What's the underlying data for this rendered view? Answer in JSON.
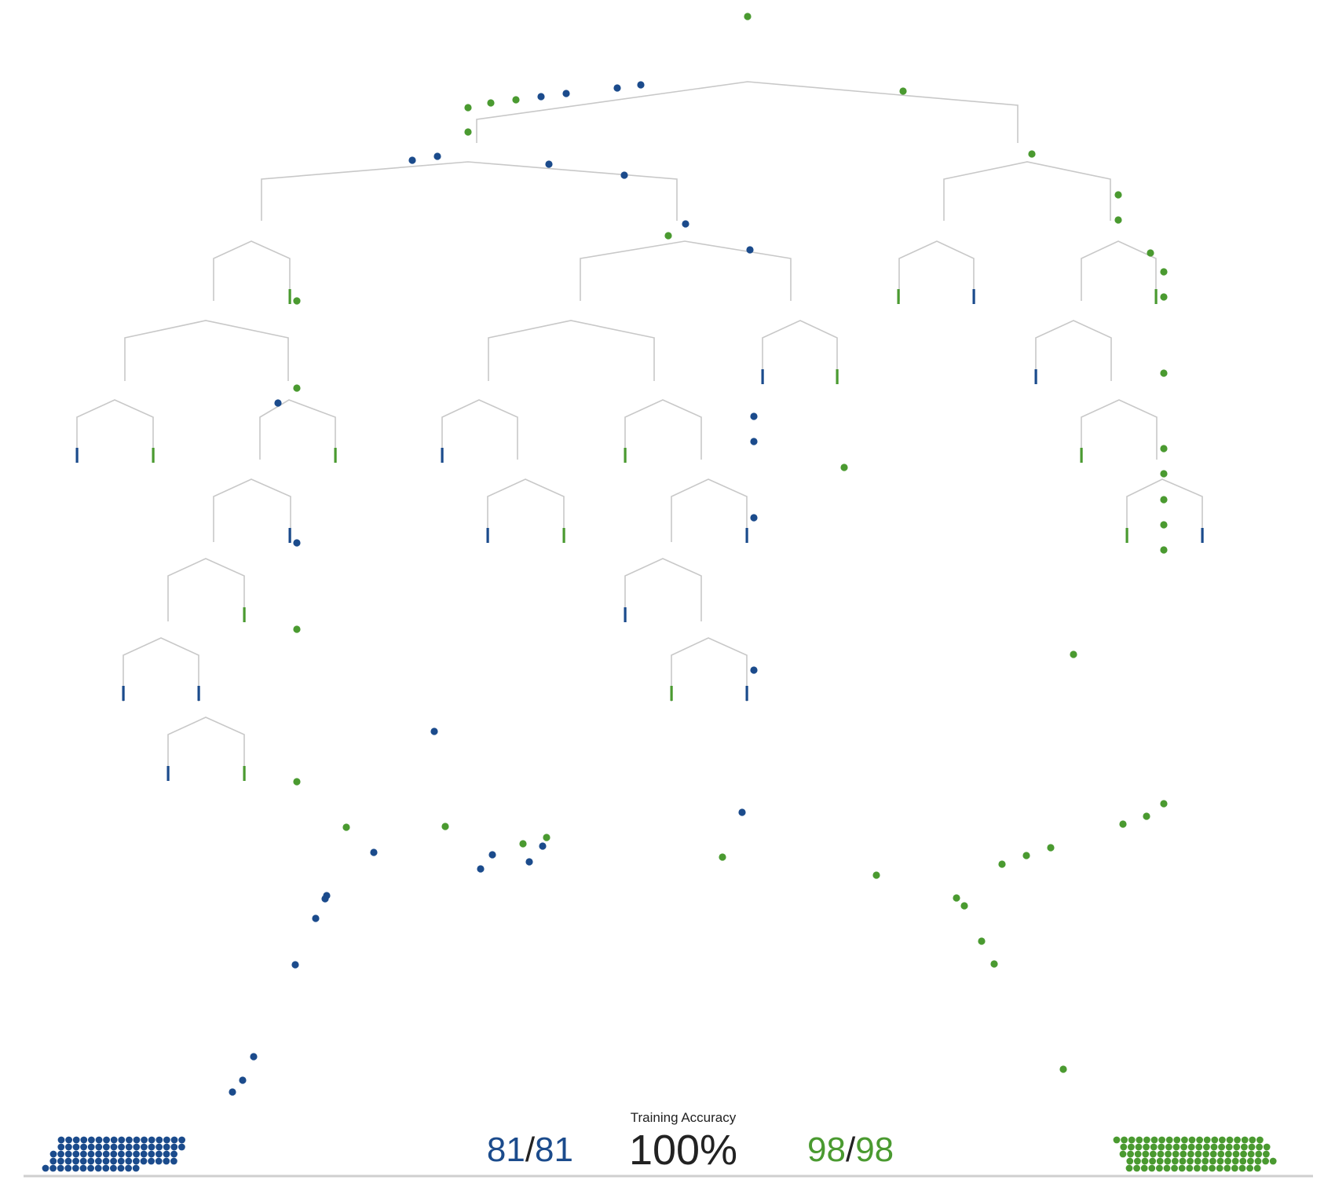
{
  "colors": {
    "class_a": "#1b4b8c",
    "class_b": "#4a9a30",
    "edge": "#c8c8c8",
    "baseline": "#cfcfcf",
    "text": "#222222"
  },
  "stats": {
    "title": "Training Accuracy",
    "accuracy": "100%",
    "left_correct": "81",
    "left_total": "81",
    "right_correct": "98",
    "right_total": "98",
    "separator": "/"
  },
  "class_counts": {
    "class_a": 81,
    "class_b": 98
  },
  "leaves": [
    [
      "blue-leaf",
      "a"
    ],
    [
      "green-leaf",
      "b"
    ]
  ]
}
